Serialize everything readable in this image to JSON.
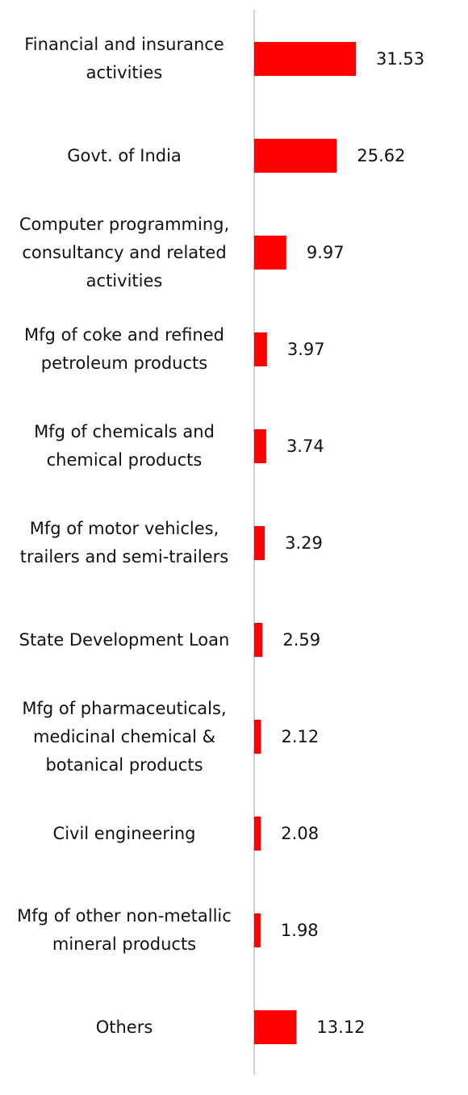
{
  "chart_data": {
    "type": "bar",
    "orientation": "horizontal",
    "categories": [
      "Financial and insurance activities",
      "Govt. of India",
      "Computer programming, consultancy and related activities",
      "Mfg of coke and refined petroleum products",
      "Mfg of chemicals and chemical products",
      "Mfg of motor vehicles, trailers and semi-trailers",
      "State Development Loan",
      "Mfg of pharmaceuticals, medicinal chemical & botanical products",
      "Civil engineering",
      "Mfg of other non-metallic mineral products",
      "Others"
    ],
    "values": [
      31.53,
      25.62,
      9.97,
      3.97,
      3.74,
      3.29,
      2.59,
      2.12,
      2.08,
      1.98,
      13.12
    ],
    "color": "#ff0000"
  }
}
